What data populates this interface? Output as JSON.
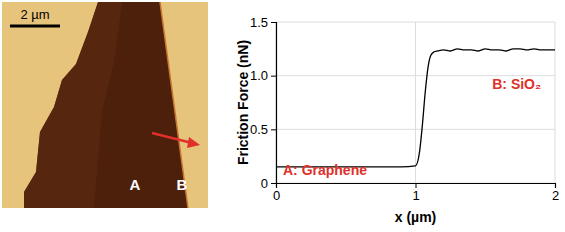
{
  "image": {
    "scale_bar": "2 µm",
    "labels": [
      "A",
      "B"
    ]
  },
  "chart_data": {
    "type": "line",
    "x_label": "x (µm)",
    "y_label": "Friction Force (nN)",
    "x": [
      0,
      0.1,
      0.2,
      0.3,
      0.4,
      0.5,
      0.6,
      0.7,
      0.8,
      0.9,
      1.0,
      1.03,
      1.05,
      1.07,
      1.09,
      1.11,
      1.13,
      1.16,
      1.2,
      1.25,
      1.3,
      1.35,
      1.4,
      1.45,
      1.5,
      1.55,
      1.6,
      1.65,
      1.7,
      1.75,
      1.8,
      1.85,
      1.9,
      1.95,
      2.0
    ],
    "values": [
      0.15,
      0.15,
      0.15,
      0.15,
      0.15,
      0.15,
      0.15,
      0.15,
      0.15,
      0.15,
      0.16,
      0.3,
      0.55,
      0.85,
      1.08,
      1.19,
      1.22,
      1.23,
      1.24,
      1.23,
      1.25,
      1.24,
      1.24,
      1.23,
      1.25,
      1.24,
      1.24,
      1.23,
      1.25,
      1.25,
      1.24,
      1.25,
      1.24,
      1.24,
      1.24
    ],
    "color": "#000000",
    "xlim": [
      0,
      2
    ],
    "ylim": [
      0,
      1.5
    ],
    "xticks": [
      0,
      1,
      2
    ],
    "yticks": [
      0,
      0.5,
      {
        "value": 1,
        "label": "1.0"
      },
      1.5
    ],
    "grid": true,
    "annotations": [
      {
        "text": "A: Graphene",
        "x": 0.05,
        "y": 0.07,
        "color": "#e0302a"
      },
      {
        "text": "B: SiO₂",
        "x": 1.55,
        "y": 0.88,
        "color": "#e0302a"
      }
    ]
  }
}
